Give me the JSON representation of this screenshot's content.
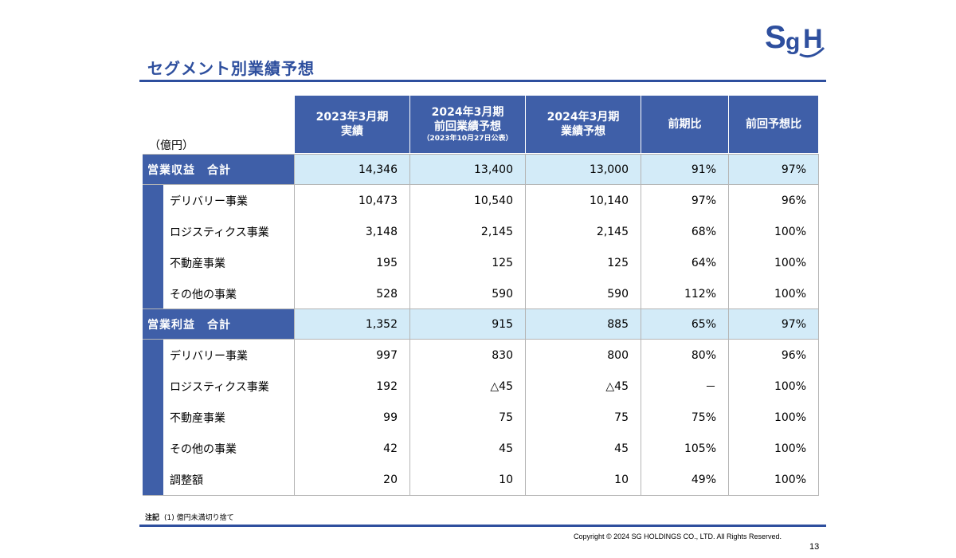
{
  "title": "セグメント別業績予想",
  "logo_text": "SgH",
  "unit_label": "（億円）",
  "columns": [
    {
      "lines": [
        "2023年3月期",
        "実績"
      ],
      "note": ""
    },
    {
      "lines": [
        "2024年3月期",
        "前回業績予想"
      ],
      "note": "（2023年10月27日公表）"
    },
    {
      "lines": [
        "2024年3月期",
        "業績予想"
      ],
      "note": ""
    },
    {
      "lines": [
        "前期比"
      ],
      "note": ""
    },
    {
      "lines": [
        "前回予想比"
      ],
      "note": ""
    }
  ],
  "sections": [
    {
      "total": {
        "label": "営業収益　合計",
        "values": [
          "14,346",
          "13,400",
          "13,000",
          "91%",
          "97%"
        ]
      },
      "rows": [
        {
          "label": "デリバリー事業",
          "values": [
            "10,473",
            "10,540",
            "10,140",
            "97%",
            "96%"
          ]
        },
        {
          "label": "ロジスティクス事業",
          "values": [
            "3,148",
            "2,145",
            "2,145",
            "68%",
            "100%"
          ]
        },
        {
          "label": "不動産事業",
          "values": [
            "195",
            "125",
            "125",
            "64%",
            "100%"
          ]
        },
        {
          "label": "その他の事業",
          "values": [
            "528",
            "590",
            "590",
            "112%",
            "100%"
          ]
        }
      ]
    },
    {
      "total": {
        "label": "営業利益　合計",
        "values": [
          "1,352",
          "915",
          "885",
          "65%",
          "97%"
        ]
      },
      "rows": [
        {
          "label": "デリバリー事業",
          "values": [
            "997",
            "830",
            "800",
            "80%",
            "96%"
          ]
        },
        {
          "label": "ロジスティクス事業",
          "values": [
            "192",
            "△45",
            "△45",
            "－",
            "100%"
          ]
        },
        {
          "label": "不動産事業",
          "values": [
            "99",
            "75",
            "75",
            "75%",
            "100%"
          ]
        },
        {
          "label": "その他の事業",
          "values": [
            "42",
            "45",
            "45",
            "105%",
            "100%"
          ]
        },
        {
          "label": "調整額",
          "values": [
            "20",
            "10",
            "10",
            "49%",
            "100%"
          ]
        }
      ]
    }
  ],
  "footnote": {
    "title": "注記",
    "text": "(1) 億円未満切り捨て"
  },
  "copyright": "Copyright © 2024 SG HOLDINGS CO., LTD.  All Rights Reserved.",
  "page_number": "13",
  "colors": {
    "header_blue": "#3f5fa8",
    "total_band": "#d3ebf8",
    "title_blue": "#2e4f9e"
  }
}
